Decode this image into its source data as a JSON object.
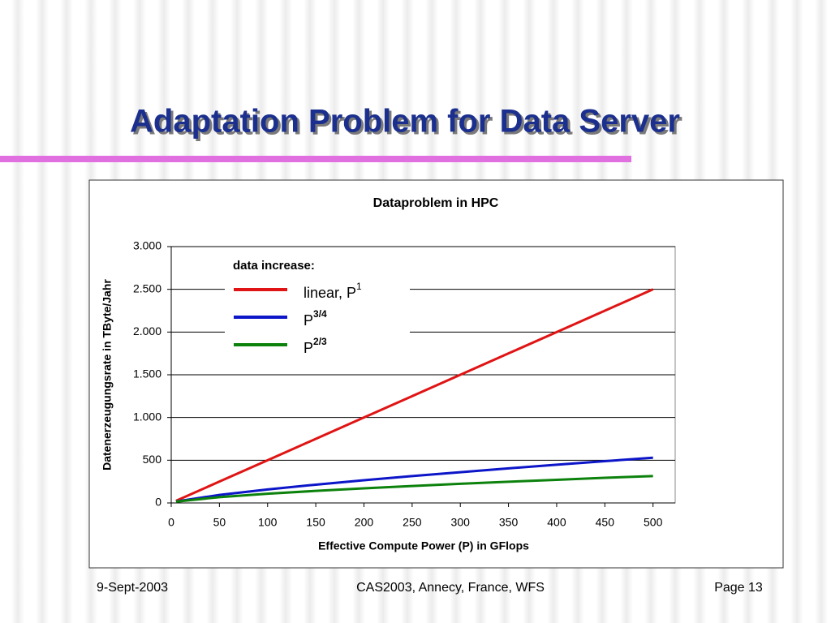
{
  "slide": {
    "title": "Adaptation Problem for Data Server",
    "footer": {
      "date": "9-Sept-2003",
      "event": "CAS2003, Annecy, France, WFS",
      "page": "Page 13"
    }
  },
  "chart_data": {
    "type": "line",
    "title": "Dataproblem in HPC",
    "x_label": "Effective Compute Power (P) in GFlops",
    "y_label": "Datenerzeugungsrate in TByte/Jahr",
    "legend_title": "data increase:",
    "x": [
      5,
      50,
      100,
      150,
      200,
      250,
      300,
      350,
      400,
      450,
      500
    ],
    "series": [
      {
        "name": "linear,  P",
        "exponent": "1",
        "color": "#e01414",
        "values": [
          25,
          250,
          500,
          750,
          1000,
          1250,
          1500,
          1750,
          2000,
          2250,
          2500
        ]
      },
      {
        "name": "P",
        "exponent": "3/4",
        "color": "#0c16c8",
        "values": [
          17,
          94,
          158,
          214,
          266,
          314,
          360,
          405,
          447,
          489,
          529
        ]
      },
      {
        "name": "P",
        "exponent": "2/3",
        "color": "#0c820c",
        "values": [
          15,
          68,
          108,
          141,
          171,
          198,
          224,
          248,
          271,
          294,
          315
        ]
      }
    ],
    "xlim": [
      0,
      523
    ],
    "xticks": [
      0,
      50,
      100,
      150,
      200,
      250,
      300,
      350,
      400,
      450,
      500
    ],
    "ylim": [
      0,
      3000
    ],
    "yticks": [
      0,
      500,
      {
        "value": 1000,
        "label": "1.000"
      },
      {
        "value": 1500,
        "label": "1.500"
      },
      {
        "value": 2000,
        "label": "2.000"
      },
      {
        "value": 2500,
        "label": "2.500"
      },
      {
        "value": 3000,
        "label": "3.000"
      }
    ],
    "grid": true
  }
}
